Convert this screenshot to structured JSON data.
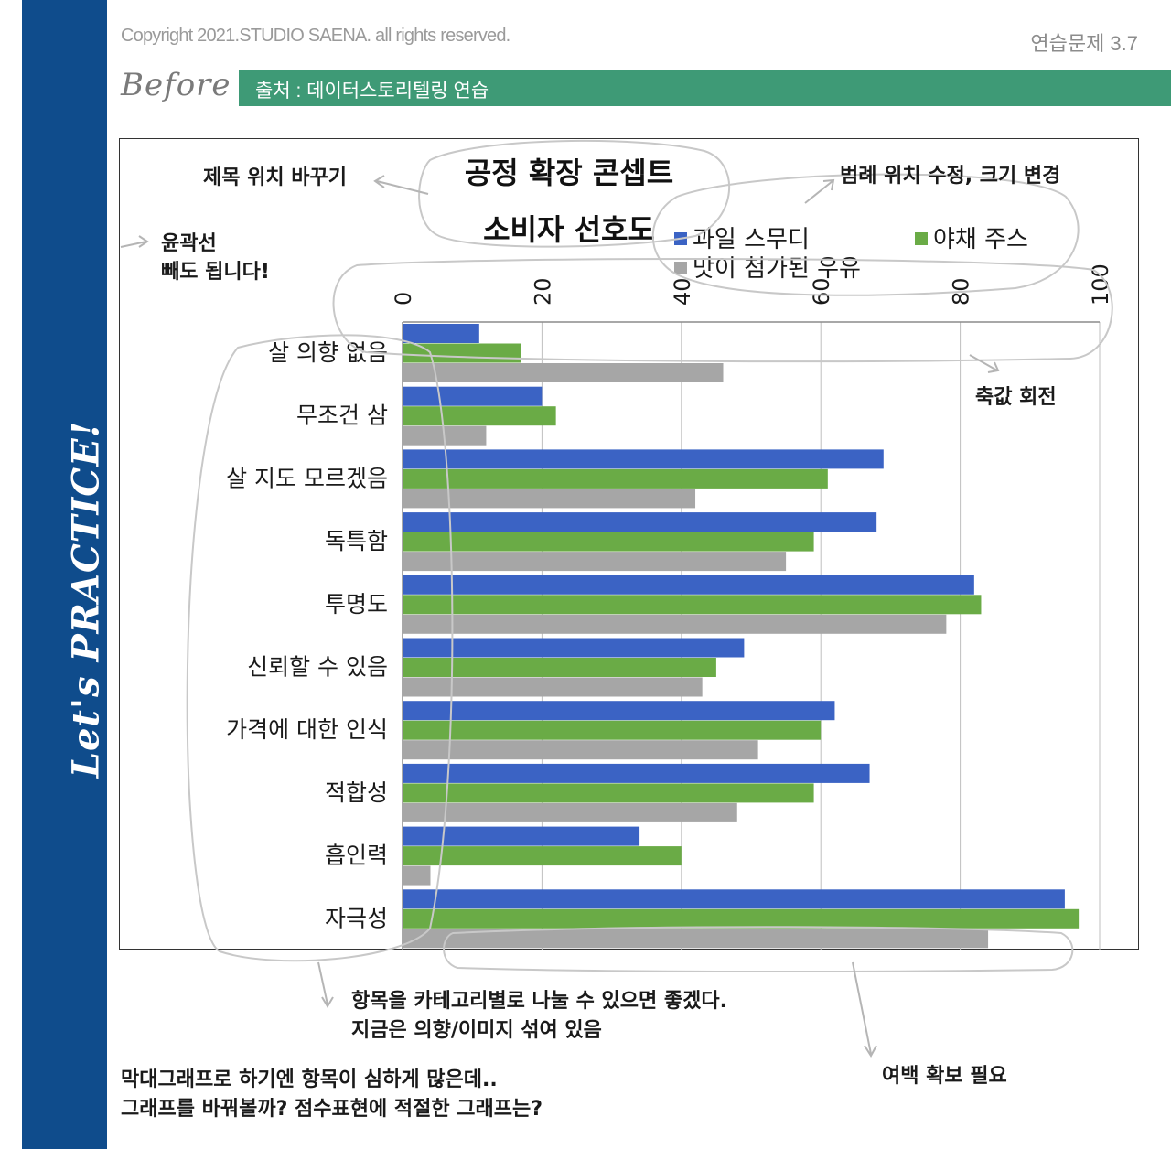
{
  "header": {
    "copyright": "Copyright 2021.STUDIO SAENA. all rights reserved.",
    "exercise_no": "연습문제 3.7",
    "before_label": "Before",
    "source": "출처 : 데이터스토리텔링 연습"
  },
  "sidebar": {
    "label": "Let's PRACTICE!"
  },
  "chart_data": {
    "type": "bar",
    "orientation": "horizontal",
    "title_line1": "공정 확장 콘셉트",
    "title_line2": "소비자 선호도",
    "categories": [
      "살 의향 없음",
      "무조건 삼",
      "살 지도 모르겠음",
      "독특함",
      "투명도",
      "신뢰할 수 있음",
      "가격에 대한 인식",
      "적합성",
      "흡인력",
      "자극성"
    ],
    "series": [
      {
        "name": "과일 스무디",
        "color": "#3b63c4",
        "values": [
          11,
          20,
          69,
          68,
          82,
          49,
          62,
          67,
          34,
          95
        ]
      },
      {
        "name": "야채 주스",
        "color": "#6aab46",
        "values": [
          17,
          22,
          61,
          59,
          83,
          45,
          60,
          59,
          40,
          97
        ]
      },
      {
        "name": "맛이 첨가된 우유",
        "color": "#a6a6a6",
        "values": [
          46,
          12,
          42,
          55,
          78,
          43,
          51,
          48,
          4,
          84
        ]
      }
    ],
    "xlim": [
      0,
      100
    ],
    "xticks": [
      "0",
      "20",
      "40",
      "60",
      "80",
      "100"
    ],
    "grid": true,
    "legend": "top-right"
  },
  "annotations": {
    "title_note": "제목 위치 바꾸기",
    "legend_note": "범례 위치 수정, 크기 변경",
    "outline_note_1": "윤곽선",
    "outline_note_2": "빼도 됩니다!",
    "axis_note": "축값 회전",
    "category_note_1": "항목을 카테고리별로 나눌 수 있으면 좋겠다.",
    "category_note_2": "지금은 의향/이미지 섞여 있음",
    "margin_note": "여백 확보 필요",
    "question_1": "막대그래프로 하기엔 항목이 심하게 많은데..",
    "question_2": "그래프를 바꿔볼까? 점수표현에 적절한 그래프는?"
  }
}
